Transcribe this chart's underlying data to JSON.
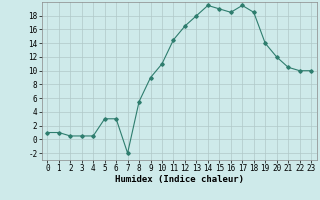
{
  "x": [
    0,
    1,
    2,
    3,
    4,
    5,
    6,
    7,
    8,
    9,
    10,
    11,
    12,
    13,
    14,
    15,
    16,
    17,
    18,
    19,
    20,
    21,
    22,
    23
  ],
  "y": [
    1,
    1,
    0.5,
    0.5,
    0.5,
    3,
    3,
    -2,
    5.5,
    9,
    11,
    14.5,
    16.5,
    18,
    19.5,
    19,
    18.5,
    19.5,
    18.5,
    14,
    12,
    10.5,
    10,
    10
  ],
  "line_color": "#2e7d6e",
  "marker": "D",
  "marker_size": 1.8,
  "line_width": 0.8,
  "background_color": "#ceeaea",
  "grid_color": "#b0c8c8",
  "xlabel": "Humidex (Indice chaleur)",
  "xlim": [
    -0.5,
    23.5
  ],
  "ylim": [
    -3,
    20
  ],
  "yticks": [
    -2,
    0,
    2,
    4,
    6,
    8,
    10,
    12,
    14,
    16,
    18
  ],
  "xticks": [
    0,
    1,
    2,
    3,
    4,
    5,
    6,
    7,
    8,
    9,
    10,
    11,
    12,
    13,
    14,
    15,
    16,
    17,
    18,
    19,
    20,
    21,
    22,
    23
  ],
  "xlabel_fontsize": 6.5,
  "tick_fontsize": 5.5
}
